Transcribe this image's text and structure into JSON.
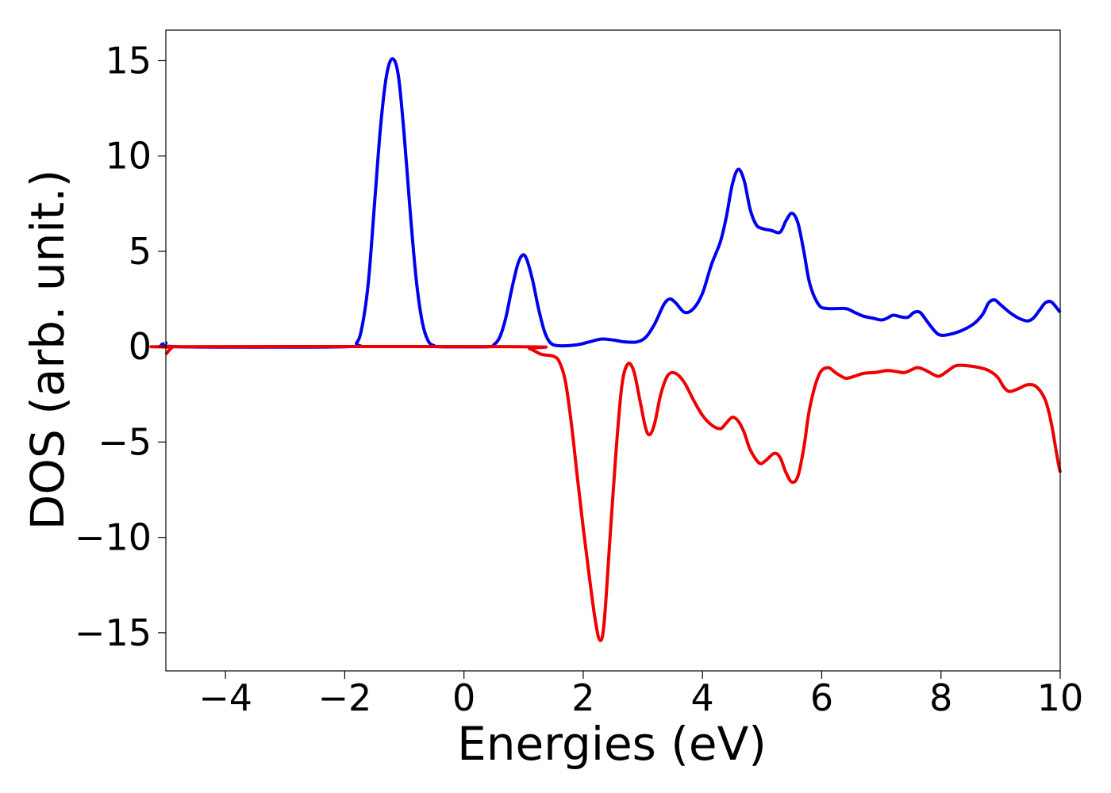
{
  "chart_data": {
    "type": "line",
    "title": "",
    "xlabel": "Energies (eV)",
    "ylabel": "DOS (arb. unit.)",
    "xlim": [
      -5,
      10
    ],
    "ylim": [
      -17,
      16.6
    ],
    "grid": false,
    "legend": "none",
    "x_ticks": [
      -4,
      -2,
      0,
      2,
      4,
      6,
      8,
      10
    ],
    "x_tick_labels": [
      "−4",
      "−2",
      "0",
      "2",
      "4",
      "6",
      "8",
      "10"
    ],
    "y_ticks": [
      15,
      10,
      5,
      0,
      -5,
      -10,
      -15
    ],
    "y_tick_labels": [
      "15",
      "10",
      "5",
      "0",
      "−5",
      "−10",
      "−15"
    ],
    "series": [
      {
        "color": "#0000ee",
        "points": [
          [
            -5.0,
            0.2
          ],
          [
            -4.8,
            0.0
          ],
          [
            -2.0,
            0.0
          ],
          [
            -1.8,
            0.2
          ],
          [
            -1.7,
            1.2
          ],
          [
            -1.6,
            3.5
          ],
          [
            -1.5,
            7.5
          ],
          [
            -1.4,
            11.5
          ],
          [
            -1.3,
            14.2
          ],
          [
            -1.2,
            15.1
          ],
          [
            -1.1,
            14.2
          ],
          [
            -1.0,
            11.0
          ],
          [
            -0.9,
            7.0
          ],
          [
            -0.8,
            3.5
          ],
          [
            -0.7,
            1.3
          ],
          [
            -0.6,
            0.3
          ],
          [
            -0.5,
            0.05
          ],
          [
            -0.4,
            0.0
          ],
          [
            0.4,
            0.0
          ],
          [
            0.5,
            0.1
          ],
          [
            0.6,
            0.5
          ],
          [
            0.7,
            1.5
          ],
          [
            0.8,
            3.0
          ],
          [
            0.9,
            4.3
          ],
          [
            0.98,
            4.8
          ],
          [
            1.05,
            4.6
          ],
          [
            1.15,
            3.5
          ],
          [
            1.25,
            2.0
          ],
          [
            1.35,
            0.8
          ],
          [
            1.45,
            0.2
          ],
          [
            1.6,
            0.05
          ],
          [
            1.9,
            0.1
          ],
          [
            2.1,
            0.25
          ],
          [
            2.3,
            0.4
          ],
          [
            2.5,
            0.35
          ],
          [
            2.7,
            0.25
          ],
          [
            2.9,
            0.25
          ],
          [
            3.05,
            0.5
          ],
          [
            3.2,
            1.2
          ],
          [
            3.35,
            2.2
          ],
          [
            3.45,
            2.5
          ],
          [
            3.55,
            2.3
          ],
          [
            3.7,
            1.8
          ],
          [
            3.85,
            2.0
          ],
          [
            4.0,
            2.8
          ],
          [
            4.15,
            4.3
          ],
          [
            4.3,
            5.5
          ],
          [
            4.4,
            6.8
          ],
          [
            4.5,
            8.5
          ],
          [
            4.6,
            9.3
          ],
          [
            4.7,
            8.7
          ],
          [
            4.8,
            7.2
          ],
          [
            4.9,
            6.4
          ],
          [
            5.0,
            6.2
          ],
          [
            5.15,
            6.1
          ],
          [
            5.3,
            6.0
          ],
          [
            5.4,
            6.6
          ],
          [
            5.5,
            7.0
          ],
          [
            5.6,
            6.5
          ],
          [
            5.7,
            5.0
          ],
          [
            5.8,
            3.3
          ],
          [
            5.95,
            2.2
          ],
          [
            6.1,
            2.0
          ],
          [
            6.4,
            2.0
          ],
          [
            6.55,
            1.8
          ],
          [
            6.7,
            1.6
          ],
          [
            6.85,
            1.5
          ],
          [
            7.0,
            1.4
          ],
          [
            7.1,
            1.5
          ],
          [
            7.2,
            1.65
          ],
          [
            7.35,
            1.55
          ],
          [
            7.45,
            1.55
          ],
          [
            7.55,
            1.8
          ],
          [
            7.65,
            1.8
          ],
          [
            7.75,
            1.4
          ],
          [
            7.9,
            0.8
          ],
          [
            8.0,
            0.6
          ],
          [
            8.15,
            0.65
          ],
          [
            8.35,
            0.85
          ],
          [
            8.55,
            1.2
          ],
          [
            8.7,
            1.7
          ],
          [
            8.8,
            2.3
          ],
          [
            8.9,
            2.45
          ],
          [
            9.0,
            2.2
          ],
          [
            9.15,
            1.8
          ],
          [
            9.3,
            1.5
          ],
          [
            9.45,
            1.35
          ],
          [
            9.55,
            1.5
          ],
          [
            9.65,
            1.9
          ],
          [
            9.75,
            2.3
          ],
          [
            9.85,
            2.35
          ],
          [
            9.95,
            2.0
          ],
          [
            10.0,
            1.8
          ]
        ]
      },
      {
        "color": "#ee0000",
        "points": [
          [
            -5.0,
            -0.4
          ],
          [
            -4.9,
            -0.05
          ],
          [
            -4.8,
            0.0
          ],
          [
            0.9,
            0.0
          ],
          [
            1.1,
            -0.1
          ],
          [
            1.3,
            -0.4
          ],
          [
            1.5,
            -0.5
          ],
          [
            1.6,
            -0.8
          ],
          [
            1.7,
            -1.8
          ],
          [
            1.8,
            -4.0
          ],
          [
            1.9,
            -6.8
          ],
          [
            2.0,
            -9.5
          ],
          [
            2.1,
            -12.0
          ],
          [
            2.2,
            -14.3
          ],
          [
            2.28,
            -15.4
          ],
          [
            2.35,
            -14.5
          ],
          [
            2.45,
            -10.0
          ],
          [
            2.55,
            -5.5
          ],
          [
            2.65,
            -2.0
          ],
          [
            2.75,
            -0.9
          ],
          [
            2.85,
            -1.3
          ],
          [
            2.95,
            -2.8
          ],
          [
            3.05,
            -4.3
          ],
          [
            3.12,
            -4.6
          ],
          [
            3.2,
            -4.0
          ],
          [
            3.3,
            -2.5
          ],
          [
            3.42,
            -1.5
          ],
          [
            3.55,
            -1.4
          ],
          [
            3.7,
            -1.9
          ],
          [
            3.85,
            -2.8
          ],
          [
            4.0,
            -3.6
          ],
          [
            4.15,
            -4.1
          ],
          [
            4.3,
            -4.3
          ],
          [
            4.4,
            -4.0
          ],
          [
            4.5,
            -3.7
          ],
          [
            4.6,
            -3.9
          ],
          [
            4.7,
            -4.5
          ],
          [
            4.8,
            -5.4
          ],
          [
            4.95,
            -6.1
          ],
          [
            5.05,
            -6.0
          ],
          [
            5.2,
            -5.6
          ],
          [
            5.3,
            -5.8
          ],
          [
            5.4,
            -6.6
          ],
          [
            5.5,
            -7.1
          ],
          [
            5.6,
            -6.8
          ],
          [
            5.7,
            -5.3
          ],
          [
            5.8,
            -3.2
          ],
          [
            5.95,
            -1.5
          ],
          [
            6.1,
            -1.1
          ],
          [
            6.25,
            -1.4
          ],
          [
            6.4,
            -1.65
          ],
          [
            6.55,
            -1.55
          ],
          [
            6.7,
            -1.4
          ],
          [
            6.9,
            -1.35
          ],
          [
            7.1,
            -1.25
          ],
          [
            7.25,
            -1.3
          ],
          [
            7.4,
            -1.35
          ],
          [
            7.6,
            -1.1
          ],
          [
            7.75,
            -1.25
          ],
          [
            7.95,
            -1.55
          ],
          [
            8.1,
            -1.3
          ],
          [
            8.25,
            -1.0
          ],
          [
            8.45,
            -1.0
          ],
          [
            8.65,
            -1.1
          ],
          [
            8.8,
            -1.25
          ],
          [
            8.95,
            -1.6
          ],
          [
            9.05,
            -2.1
          ],
          [
            9.15,
            -2.35
          ],
          [
            9.3,
            -2.2
          ],
          [
            9.45,
            -2.0
          ],
          [
            9.6,
            -2.1
          ],
          [
            9.75,
            -2.8
          ],
          [
            9.85,
            -4.0
          ],
          [
            9.95,
            -5.8
          ],
          [
            10.0,
            -6.6
          ]
        ]
      }
    ]
  }
}
